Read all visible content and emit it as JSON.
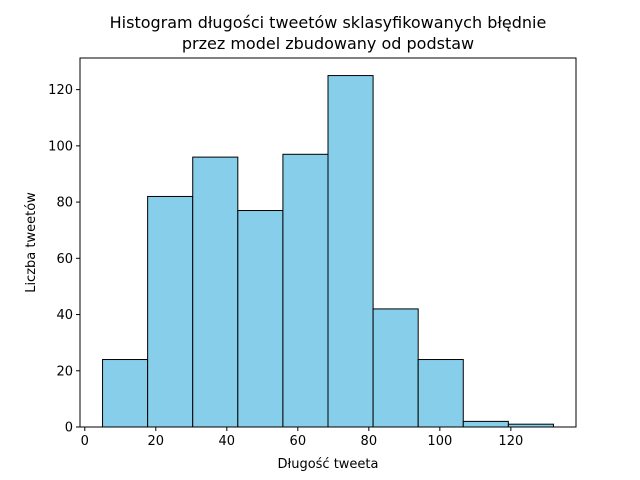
{
  "chart_data": {
    "type": "bar",
    "title": [
      "Histogram długości tweetów sklasyfikowanych błędnie",
      "przez model zbudowany od podstaw"
    ],
    "xlabel": "Długość tweeta",
    "ylabel": "Liczba tweetów",
    "bins": [
      {
        "x0": 5.0,
        "x1": 17.7,
        "count": 24
      },
      {
        "x0": 17.7,
        "x1": 30.4,
        "count": 82
      },
      {
        "x0": 30.4,
        "x1": 43.1,
        "count": 96
      },
      {
        "x0": 43.1,
        "x1": 55.8,
        "count": 77
      },
      {
        "x0": 55.8,
        "x1": 68.5,
        "count": 97
      },
      {
        "x0": 68.5,
        "x1": 81.2,
        "count": 125
      },
      {
        "x0": 81.2,
        "x1": 93.9,
        "count": 42
      },
      {
        "x0": 93.9,
        "x1": 106.6,
        "count": 24
      },
      {
        "x0": 106.6,
        "x1": 119.3,
        "count": 2
      },
      {
        "x0": 119.3,
        "x1": 132.0,
        "count": 1
      }
    ],
    "xlim": [
      -1.35,
      138.35
    ],
    "ylim": [
      0,
      131.25
    ],
    "xticks": [
      0,
      20,
      40,
      60,
      80,
      100,
      120
    ],
    "yticks": [
      0,
      20,
      40,
      60,
      80,
      100,
      120
    ],
    "bar_color": "#87ceeb",
    "edge_color": "#000000",
    "grid": false,
    "legend": "none"
  }
}
